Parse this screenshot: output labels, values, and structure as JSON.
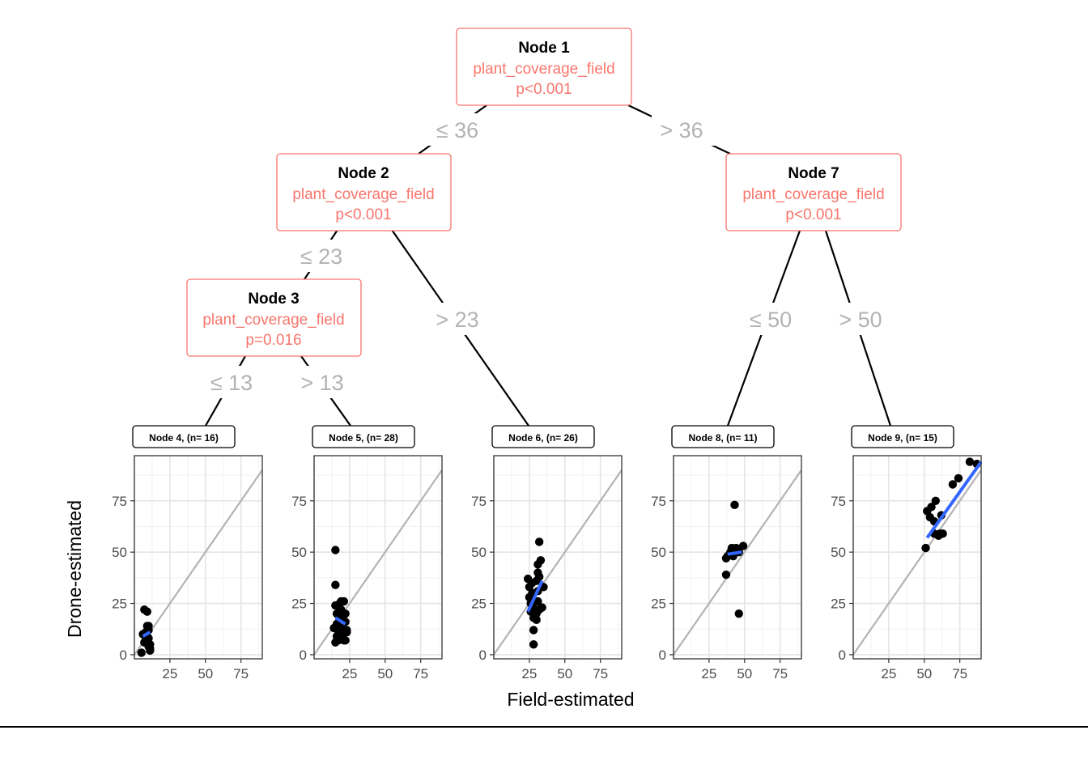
{
  "chart_data": {
    "type": "scatter",
    "title": "",
    "xlabel": "Field-estimated",
    "ylabel": "Drone-estimated",
    "xlim": [
      0,
      90
    ],
    "ylim": [
      -2,
      97
    ],
    "x_ticks": [
      25,
      50,
      75
    ],
    "y_ticks": [
      0,
      25,
      50,
      75
    ],
    "grid": true,
    "reference_line": "y = x",
    "tree": {
      "nodes": [
        {
          "id": 1,
          "title": "Node 1",
          "variable": "plant_coverage_field",
          "p": "p<0.001"
        },
        {
          "id": 2,
          "title": "Node 2",
          "variable": "plant_coverage_field",
          "p": "p<0.001"
        },
        {
          "id": 7,
          "title": "Node 7",
          "variable": "plant_coverage_field",
          "p": "p<0.001"
        },
        {
          "id": 3,
          "title": "Node 3",
          "variable": "plant_coverage_field",
          "p": "p=0.016"
        }
      ],
      "edges": [
        {
          "from": 1,
          "to": 2,
          "label": "≤ 36"
        },
        {
          "from": 1,
          "to": 7,
          "label": "> 36"
        },
        {
          "from": 2,
          "to": 3,
          "label": "≤ 23"
        },
        {
          "from": 2,
          "to": 6,
          "label": "> 23"
        },
        {
          "from": 3,
          "to": 4,
          "label": "≤ 13"
        },
        {
          "from": 3,
          "to": 5,
          "label": "> 13"
        },
        {
          "from": 7,
          "to": 8,
          "label": "≤ 50"
        },
        {
          "from": 7,
          "to": 9,
          "label": "> 50"
        }
      ]
    },
    "panels": [
      {
        "label": "Node 4, (n= 16)",
        "fit": [
          [
            6,
            9
          ],
          [
            11,
            11
          ]
        ],
        "points": [
          [
            5,
            1
          ],
          [
            6,
            10
          ],
          [
            7,
            22
          ],
          [
            7,
            6
          ],
          [
            8,
            7
          ],
          [
            8,
            11
          ],
          [
            9,
            21
          ],
          [
            9,
            14
          ],
          [
            9,
            9
          ],
          [
            10,
            12
          ],
          [
            10,
            8
          ],
          [
            10,
            4
          ],
          [
            10,
            14
          ],
          [
            11,
            5
          ],
          [
            11,
            3
          ],
          [
            11,
            2
          ]
        ]
      },
      {
        "label": "Node 5, (n= 28)",
        "fit": [
          [
            15,
            18
          ],
          [
            22,
            15
          ]
        ],
        "points": [
          [
            14,
            13
          ],
          [
            15,
            6
          ],
          [
            15,
            34
          ],
          [
            15,
            51
          ],
          [
            15,
            24
          ],
          [
            16,
            9
          ],
          [
            16,
            15
          ],
          [
            16,
            20
          ],
          [
            17,
            7
          ],
          [
            17,
            10
          ],
          [
            18,
            13
          ],
          [
            18,
            17
          ],
          [
            18,
            25
          ],
          [
            19,
            8
          ],
          [
            19,
            12
          ],
          [
            19,
            26
          ],
          [
            19,
            22
          ],
          [
            20,
            18
          ],
          [
            20,
            10
          ],
          [
            20,
            13
          ],
          [
            21,
            7
          ],
          [
            21,
            26
          ],
          [
            21,
            11
          ],
          [
            22,
            20
          ],
          [
            22,
            16
          ],
          [
            22,
            7
          ],
          [
            23,
            12
          ],
          [
            23,
            11
          ]
        ]
      },
      {
        "label": "Node 6, (n= 26)",
        "fit": [
          [
            24,
            21
          ],
          [
            34,
            36
          ]
        ],
        "points": [
          [
            24,
            37
          ],
          [
            25,
            33
          ],
          [
            25,
            28
          ],
          [
            26,
            25
          ],
          [
            26,
            21
          ],
          [
            27,
            24
          ],
          [
            27,
            30
          ],
          [
            27,
            35
          ],
          [
            28,
            18
          ],
          [
            28,
            12
          ],
          [
            28,
            5
          ],
          [
            29,
            22
          ],
          [
            29,
            26
          ],
          [
            30,
            17
          ],
          [
            30,
            20
          ],
          [
            30,
            36
          ],
          [
            31,
            31
          ],
          [
            31,
            26
          ],
          [
            31,
            44
          ],
          [
            31,
            40
          ],
          [
            32,
            55
          ],
          [
            32,
            38
          ],
          [
            32,
            22
          ],
          [
            33,
            46
          ],
          [
            34,
            23
          ],
          [
            35,
            33
          ]
        ]
      },
      {
        "label": "Node 8, (n= 11)",
        "fit": [
          [
            38,
            49
          ],
          [
            48,
            50
          ]
        ],
        "points": [
          [
            37,
            39
          ],
          [
            37,
            47
          ],
          [
            38,
            48
          ],
          [
            40,
            50
          ],
          [
            41,
            52
          ],
          [
            42,
            48
          ],
          [
            43,
            73
          ],
          [
            44,
            52
          ],
          [
            46,
            50
          ],
          [
            46,
            20
          ],
          [
            49,
            53
          ]
        ]
      },
      {
        "label": "Node 9, (n= 15)",
        "fit": [
          [
            52,
            57
          ],
          [
            90,
            94
          ]
        ],
        "points": [
          [
            51,
            52
          ],
          [
            52,
            70
          ],
          [
            54,
            67
          ],
          [
            55,
            72
          ],
          [
            57,
            59
          ],
          [
            57,
            65
          ],
          [
            58,
            75
          ],
          [
            60,
            58
          ],
          [
            61,
            59
          ],
          [
            62,
            68
          ],
          [
            63,
            59
          ],
          [
            70,
            83
          ],
          [
            74,
            86
          ],
          [
            82,
            94
          ],
          [
            87,
            93
          ]
        ]
      }
    ]
  }
}
